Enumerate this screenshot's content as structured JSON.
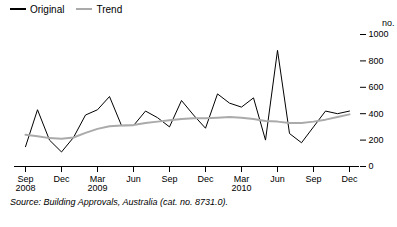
{
  "chart_data": {
    "type": "line",
    "ylabel": "no.",
    "caption": "Source:  Building Approvals, Australia  (cat.  no. 8731.0).",
    "categories": [
      "Sep\n2008",
      null,
      null,
      "Dec",
      null,
      null,
      "Mar\n2009",
      null,
      null,
      "Jun",
      null,
      null,
      "Sep",
      null,
      null,
      "Dec",
      null,
      null,
      "Mar\n2010",
      null,
      null,
      "Jun",
      null,
      null,
      "Sep",
      null,
      null,
      "Dec"
    ],
    "series": [
      {
        "name": "Original",
        "color": "#000000",
        "values": [
          150,
          430,
          200,
          110,
          220,
          390,
          430,
          530,
          310,
          310,
          420,
          370,
          300,
          500,
          390,
          290,
          550,
          480,
          450,
          520,
          200,
          880,
          250,
          180,
          300,
          420,
          400,
          420
        ]
      },
      {
        "name": "Trend",
        "color": "#aaaaaa",
        "values": [
          240,
          230,
          215,
          210,
          220,
          255,
          285,
          305,
          310,
          315,
          330,
          340,
          350,
          360,
          365,
          365,
          370,
          375,
          370,
          360,
          345,
          340,
          330,
          330,
          340,
          355,
          375,
          395
        ]
      }
    ],
    "ylim": [
      0,
      1000
    ],
    "yticks": [
      0,
      200,
      400,
      600,
      800,
      1000
    ],
    "legend": "upper left"
  }
}
